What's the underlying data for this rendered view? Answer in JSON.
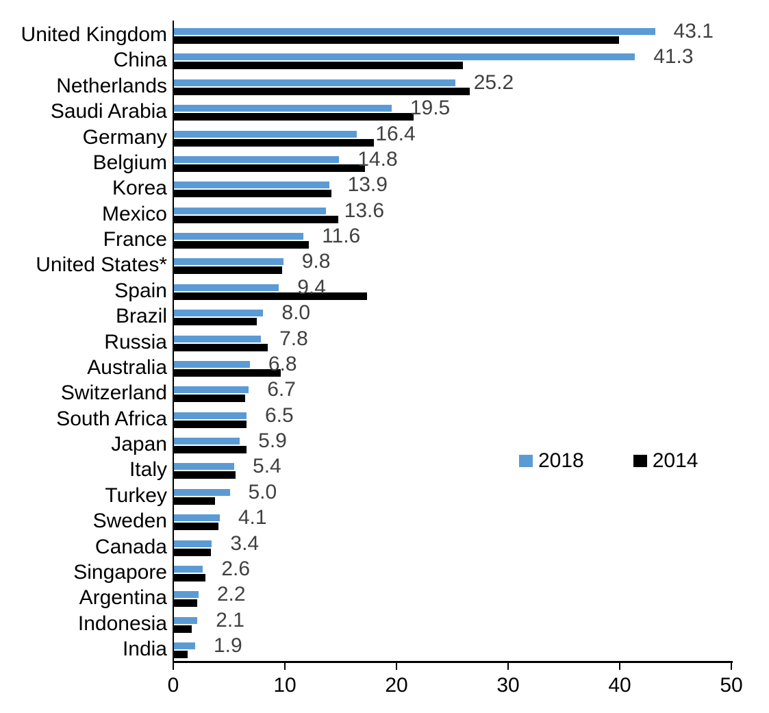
{
  "chart_data": {
    "type": "bar",
    "orientation": "horizontal",
    "title": "",
    "xlabel": "",
    "ylabel": "",
    "xlim": [
      0,
      50
    ],
    "x_ticks": [
      0,
      10,
      20,
      30,
      40,
      50
    ],
    "grid": false,
    "legend_position": "center-right",
    "categories": [
      "United Kingdom",
      "China",
      "Netherlands",
      "Saudi Arabia",
      "Germany",
      "Belgium",
      "Korea",
      "Mexico",
      "France",
      "United States*",
      "Spain",
      "Brazil",
      "Russia",
      "Australia",
      "Switzerland",
      "South Africa",
      "Japan",
      "Italy",
      "Turkey",
      "Sweden",
      "Canada",
      "Singapore",
      "Argentina",
      "Indonesia",
      "India"
    ],
    "series": [
      {
        "name": "2018",
        "color": "#5B9BD5",
        "values": [
          43.1,
          41.3,
          25.2,
          19.5,
          16.4,
          14.8,
          13.9,
          13.6,
          11.6,
          9.8,
          9.4,
          8.0,
          7.8,
          6.8,
          6.7,
          6.5,
          5.9,
          5.4,
          5.0,
          4.1,
          3.4,
          2.6,
          2.2,
          2.1,
          1.9
        ]
      },
      {
        "name": "2014",
        "color": "#000000",
        "values": [
          39.9,
          25.9,
          26.5,
          21.5,
          17.9,
          17.1,
          14.1,
          14.7,
          12.1,
          9.7,
          17.3,
          7.4,
          8.4,
          9.6,
          6.4,
          6.5,
          6.5,
          5.5,
          3.7,
          4.0,
          3.3,
          2.8,
          2.1,
          1.6,
          1.2
        ]
      }
    ],
    "value_labels": [
      "43.1",
      "41.3",
      "25.2",
      "19.5",
      "16.4",
      "14.8",
      "13.9",
      "13.6",
      "11.6",
      "9.8",
      "9.4",
      "8.0",
      "7.8",
      "6.8",
      "6.7",
      "6.5",
      "5.9",
      "5.4",
      "5.0",
      "4.1",
      "3.4",
      "2.6",
      "2.2",
      "2.1",
      "1.9"
    ]
  },
  "legend": {
    "label_2018": "2018",
    "label_2014": "2014"
  },
  "colors": {
    "series_2018": "#5B9BD5",
    "series_2014": "#000000",
    "value_label": "#404040",
    "axis": "#000000",
    "background": "#FFFFFF"
  }
}
